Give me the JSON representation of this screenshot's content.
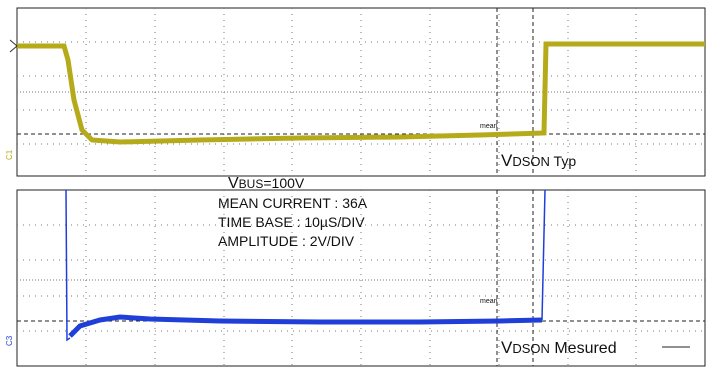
{
  "notes": {
    "vbus": {
      "main": "V",
      "sub": "BUS",
      "suffix": "=100V"
    },
    "mean_current": "MEAN CURRENT : 36A",
    "time_base": "TIME BASE : 10µS/DIV",
    "amplitude": "AMPLITUDE : 2V/DIV"
  },
  "panels": [
    {
      "channel": "C1",
      "mean_label": "mean",
      "annotation": {
        "main": "V",
        "sub": "DSON",
        "suffix": " Typ"
      }
    },
    {
      "channel": "C3",
      "mean_label": "mean",
      "annotation": {
        "main": "V",
        "sub": "DSON",
        "suffix": " Mesured"
      }
    }
  ]
}
